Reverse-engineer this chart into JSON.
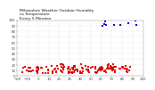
{
  "title": "Milwaukee Weather Outdoor Humidity\nvs Temperature\nEvery 5 Minutes",
  "title_fontsize": 3.2,
  "xlim": [
    -20,
    100
  ],
  "ylim": [
    0,
    100
  ],
  "xtick_step": 10,
  "ytick_step": 10,
  "background_color": "#ffffff",
  "grid_color": "#bbbbbb",
  "dot_color_main": "#dd0000",
  "dot_color_highlight": "#0000cc",
  "tick_fontsize": 2.8,
  "seed": 7,
  "n_main": 120,
  "n_highlight": 10
}
